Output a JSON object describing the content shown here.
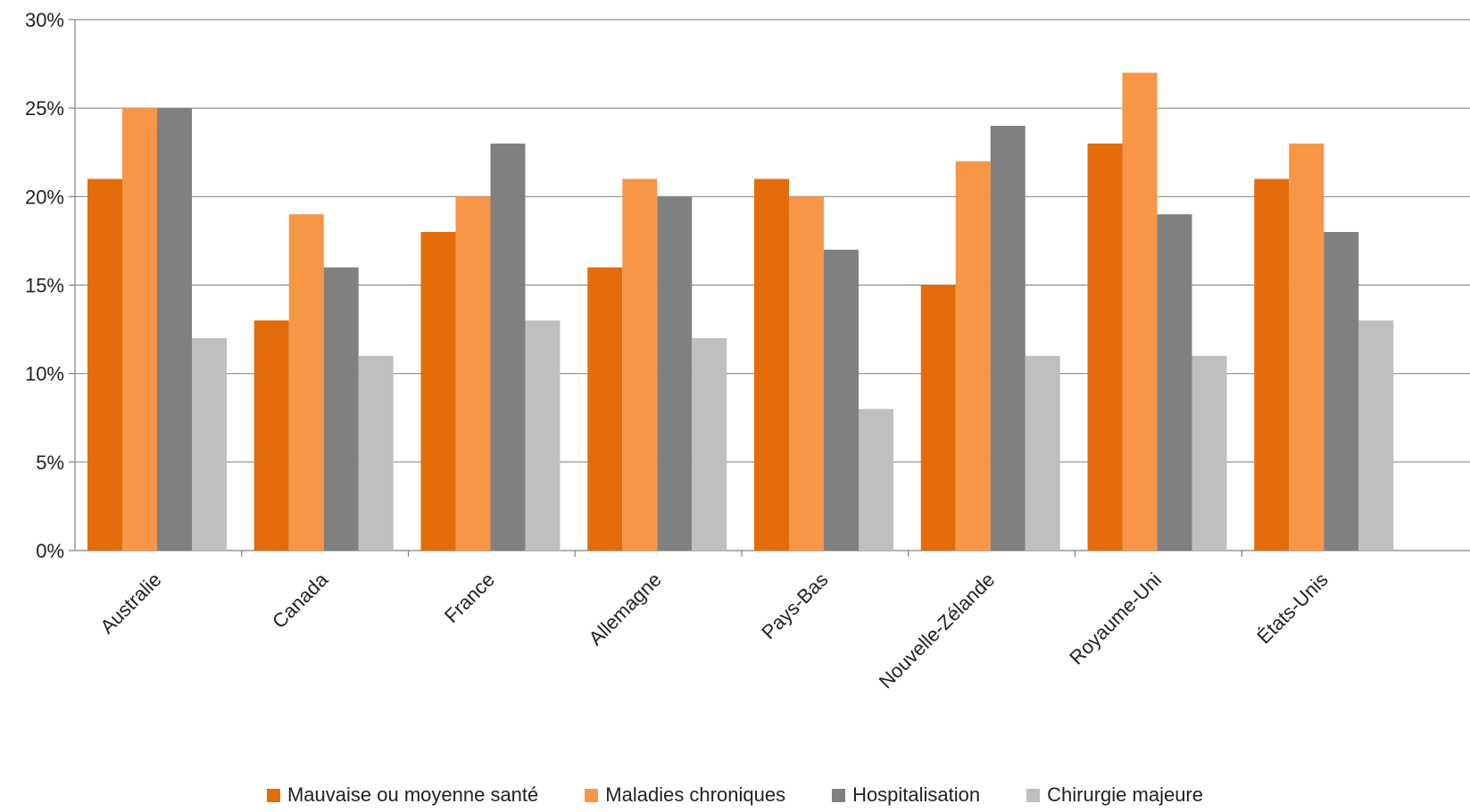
{
  "chart_data": {
    "type": "bar",
    "categories": [
      "Australie",
      "Canada",
      "France",
      "Allemagne",
      "Pays-Bas",
      "Nouvelle-Zélande",
      "Royaume-Uni",
      "États-Unis"
    ],
    "series": [
      {
        "name": "Mauvaise ou moyenne santé",
        "color": "#E36C0A",
        "values": [
          21,
          13,
          18,
          16,
          21,
          15,
          23,
          21
        ]
      },
      {
        "name": "Maladies chroniques",
        "color": "#F79646",
        "values": [
          25,
          19,
          20,
          21,
          20,
          22,
          27,
          23
        ]
      },
      {
        "name": "Hospitalisation",
        "color": "#808080",
        "values": [
          25,
          16,
          23,
          20,
          17,
          24,
          19,
          18
        ]
      },
      {
        "name": "Chirurgie majeure",
        "color": "#BFBFBF",
        "values": [
          12,
          11,
          13,
          12,
          8,
          11,
          11,
          13
        ]
      }
    ],
    "ylim": [
      0,
      30
    ],
    "yticks": [
      "0%",
      "5%",
      "10%",
      "15%",
      "20%",
      "25%",
      "30%"
    ],
    "grid": true,
    "legend_position": "bottom"
  }
}
